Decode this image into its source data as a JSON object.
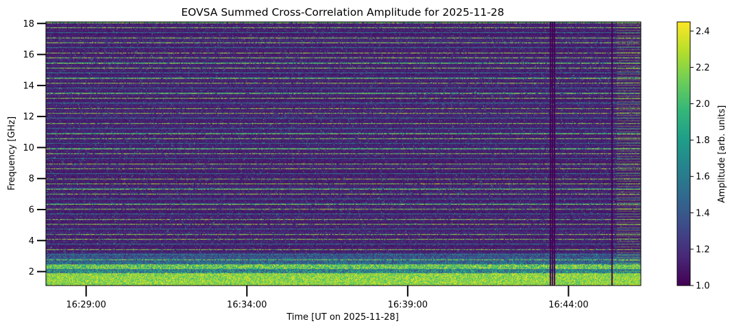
{
  "chart_data": {
    "type": "heatmap",
    "title": "EOVSA Summed Cross-Correlation Amplitude for 2025-11-28",
    "xlabel": "Time [UT on 2025-11-28]",
    "ylabel": "Frequency [GHz]",
    "x_tick_labels": [
      "16:29:00",
      "16:34:00",
      "16:39:00",
      "16:44:00"
    ],
    "x_ticks": [
      "16:29:00",
      "16:34:00",
      "16:39:00",
      "16:44:00"
    ],
    "xlim": [
      "16:27:45",
      "16:46:15"
    ],
    "y_ticks": [
      2,
      4,
      6,
      8,
      10,
      12,
      14,
      16,
      18
    ],
    "y_tick_labels": [
      "2",
      "4",
      "6",
      "8",
      "10",
      "12",
      "14",
      "16",
      "18"
    ],
    "ylim": [
      1.1,
      18.1
    ],
    "colormap": "viridis",
    "colorbar": {
      "label": "Amplitude [arb. units]",
      "range": [
        1.0,
        2.45
      ],
      "ticks": [
        1.0,
        1.2,
        1.4,
        1.6,
        1.8,
        2.0,
        2.2,
        2.4
      ],
      "tick_labels": [
        "1.0",
        "1.2",
        "1.4",
        "1.6",
        "1.8",
        "2.0",
        "2.2",
        "2.4"
      ]
    },
    "colors": {
      "viridis_stops": [
        "#440154",
        "#482878",
        "#3e4a89",
        "#31688e",
        "#26828e",
        "#1f9e89",
        "#35b779",
        "#6ece58",
        "#b5de2b",
        "#fde725"
      ],
      "background": "#440154"
    },
    "grid": false,
    "legend": "none"
  }
}
